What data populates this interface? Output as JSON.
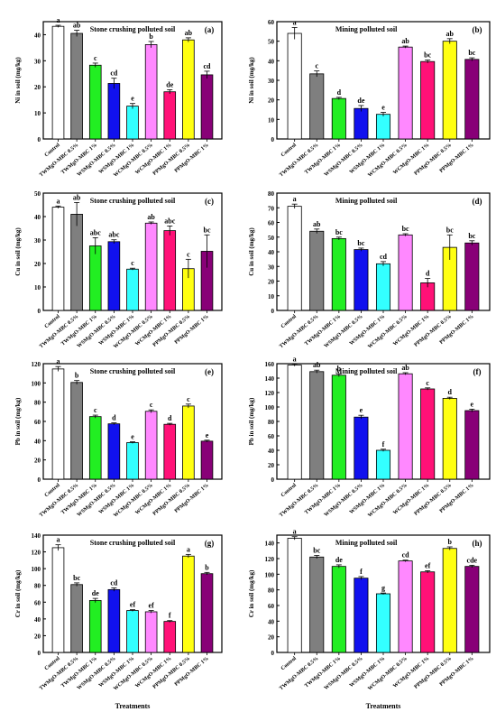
{
  "colors": [
    "#ffffff",
    "#7f7f7f",
    "#22ee22",
    "#1111ee",
    "#33ffff",
    "#ff88ff",
    "#ff1177",
    "#ffff11",
    "#880077"
  ],
  "chart_data": [
    {
      "id": "a",
      "type": "bar",
      "title": "Stone crushing polluted soil",
      "panel_label": "(a)",
      "ylabel": "Ni in soil (mg/kg)",
      "xlabel": "",
      "ylim": [
        0,
        45
      ],
      "yticks": [
        0,
        10,
        20,
        30,
        40
      ],
      "categories": [
        "Control",
        "TWMgO-MBC 0.5%",
        "TWMgO-MBC 1%",
        "WSMgO-MBC 0.5%",
        "WSMgO-MBC 1%",
        "WCMgO-MBC 0.5%",
        "WCMgO-MBC 1%",
        "PPMgO-MBC 0.5%",
        "PPMgO-MBC 1%"
      ],
      "values": [
        43.2,
        40.5,
        28.3,
        21.3,
        12.6,
        36.2,
        18.1,
        38.0,
        24.6
      ],
      "errors": [
        0.4,
        1.2,
        0.8,
        2.0,
        1.0,
        1.2,
        0.8,
        0.8,
        1.4
      ],
      "letters": [
        "a",
        "ab",
        "c",
        "cd",
        "e",
        "b",
        "de",
        "ab",
        "cd"
      ]
    },
    {
      "id": "b",
      "type": "bar",
      "title": "Mining polluted soil",
      "panel_label": "(b)",
      "ylabel": "Ni in soil (mg/kg)",
      "xlabel": "",
      "ylim": [
        0,
        60
      ],
      "yticks": [
        0,
        10,
        20,
        30,
        40,
        50,
        60
      ],
      "categories": [
        "Control",
        "TWMgO-MBC 0.5%",
        "TWMgO-MBC 1%",
        "WSMgO-MBC 0.5%",
        "WSMgO-MBC 1%",
        "WCMgO-MBC 0.5%",
        "WCMgO-MBC 1%",
        "PPMgO-MBC 0.5%",
        "PPMgO-MBC 1%"
      ],
      "values": [
        54.0,
        33.3,
        20.7,
        15.6,
        12.6,
        47.0,
        39.6,
        50.0,
        40.7
      ],
      "errors": [
        3.0,
        1.5,
        0.6,
        1.5,
        1.0,
        0.5,
        0.8,
        1.3,
        0.8
      ],
      "letters": [
        "a",
        "c",
        "d",
        "de",
        "e",
        "ab",
        "bc",
        "ab",
        "bc"
      ]
    },
    {
      "id": "c",
      "type": "bar",
      "title": "Stone crushing polluted soil",
      "panel_label": "(c)",
      "ylabel": "Cu in soil (mg/kg)",
      "xlabel": "",
      "ylim": [
        0,
        50
      ],
      "yticks": [
        0,
        10,
        20,
        30,
        40,
        50
      ],
      "categories": [
        "Control",
        "TWMgO-MBC 0.5%",
        "TWMgO-MBC 1%",
        "WSMgO-MBC 0.5%",
        "WSMgO-MBC 1%",
        "WCMgO-MBC 0.5%",
        "WCMgO-MBC 1%",
        "PPMgO-MBC 0.5%",
        "PPMgO-MBC 1%"
      ],
      "values": [
        44.0,
        41.0,
        27.5,
        29.3,
        17.6,
        37.2,
        34.0,
        17.8,
        25.2
      ],
      "errors": [
        0.5,
        5.0,
        3.5,
        0.8,
        0.4,
        0.5,
        2.0,
        4.0,
        7.0
      ],
      "letters": [
        "a",
        "ab",
        "abc",
        "abc",
        "c",
        "ab",
        "abc",
        "c",
        "bc"
      ]
    },
    {
      "id": "d",
      "type": "bar",
      "title": "Mining polluted soil",
      "panel_label": "(d)",
      "ylabel": "Cu in soil (mg/kg)",
      "xlabel": "",
      "ylim": [
        0,
        80
      ],
      "yticks": [
        0,
        10,
        20,
        30,
        40,
        50,
        60,
        70,
        80
      ],
      "categories": [
        "Control",
        "TWMgO-MBC 0.5%",
        "TWMgO-MBC 1%",
        "WSMgO-MBC 0.5%",
        "WSMgO-MBC 1%",
        "WCMgO-MBC 0.5%",
        "WCMgO-MBC 1%",
        "PPMgO-MBC 0.5%",
        "PPMgO-MBC 1%"
      ],
      "values": [
        71.0,
        54.0,
        49.0,
        41.5,
        31.8,
        51.5,
        18.8,
        43.0,
        46.0
      ],
      "errors": [
        1.5,
        1.5,
        1.0,
        1.0,
        1.5,
        0.8,
        3.0,
        8.5,
        1.5
      ],
      "letters": [
        "a",
        "ab",
        "bc",
        "bc",
        "cd",
        "bc",
        "d",
        "bc",
        "bc"
      ]
    },
    {
      "id": "e",
      "type": "bar",
      "title": "Stone crushing polluted soil",
      "panel_label": "(e)",
      "ylabel": "Pb in soil (mg/kg)",
      "xlabel": "",
      "ylim": [
        0,
        120
      ],
      "yticks": [
        0,
        20,
        40,
        60,
        80,
        100,
        120
      ],
      "categories": [
        "Control",
        "TWMgO-MBC 0.5%",
        "TWMgO-MBC 1%",
        "WSMgO-MBC 0.5%",
        "WSMgO-MBC 1%",
        "WCMgO-MBC 0.5%",
        "WCMgO-MBC 1%",
        "PPMgO-MBC 0.5%",
        "PPMgO-MBC 1%"
      ],
      "values": [
        114.5,
        100.5,
        65.0,
        57.5,
        38.0,
        70.5,
        57.0,
        76.0,
        39.5
      ],
      "errors": [
        2.5,
        2.0,
        1.5,
        1.0,
        0.8,
        1.5,
        1.0,
        2.0,
        1.0
      ],
      "letters": [
        "a",
        "b",
        "c",
        "d",
        "e",
        "c",
        "d",
        "c",
        "e"
      ]
    },
    {
      "id": "f",
      "type": "bar",
      "title": "Mining polluted soil",
      "panel_label": "(f)",
      "ylabel": "Pb in soil (mg/kg)",
      "xlabel": "",
      "ylim": [
        0,
        160
      ],
      "yticks": [
        0,
        20,
        40,
        60,
        80,
        100,
        120,
        140,
        160
      ],
      "categories": [
        "Control",
        "TWMgO-MBC 0.5%",
        "TWMgO-MBC 1%",
        "WSMgO-MBC 0.5%",
        "WSMgO-MBC 1%",
        "WCMgO-MBC 0.5%",
        "WCMgO-MBC 1%",
        "PPMgO-MBC 0.5%",
        "PPMgO-MBC 1%"
      ],
      "values": [
        158.0,
        149.0,
        144.0,
        86.0,
        40.0,
        146.0,
        125.0,
        112.0,
        95.0
      ],
      "errors": [
        1.5,
        2.0,
        2.0,
        2.5,
        1.5,
        1.5,
        1.5,
        1.5,
        2.0
      ],
      "letters": [
        "a",
        "ab",
        "b",
        "e",
        "f",
        "ab",
        "c",
        "d",
        "e"
      ]
    },
    {
      "id": "g",
      "type": "bar",
      "title": "Stone crushing polluted soil",
      "panel_label": "(g)",
      "ylabel": "Cr in soil (mg/kg)",
      "xlabel": "Treatments",
      "ylim": [
        0,
        140
      ],
      "yticks": [
        0,
        20,
        40,
        60,
        80,
        100,
        120,
        140
      ],
      "categories": [
        "Control",
        "TWMgO-MBC 0.5%",
        "TWMgO-MBC 1%",
        "WSMgO-MBC 0.5%",
        "WSMgO-MBC 1%",
        "WCMgO-MBC 0.5%",
        "WCMgO-MBC 1%",
        "PPMgO-MBC 0.5%",
        "PPMgO-MBC 1%"
      ],
      "values": [
        125.0,
        81.0,
        62.0,
        75.0,
        50.0,
        48.5,
        37.0,
        115.0,
        94.0
      ],
      "errors": [
        3.5,
        2.0,
        2.5,
        2.0,
        1.0,
        1.5,
        1.0,
        2.0,
        1.5
      ],
      "letters": [
        "a",
        "bc",
        "de",
        "cd",
        "ef",
        "ef",
        "f",
        "a",
        "b"
      ]
    },
    {
      "id": "h",
      "type": "bar",
      "title": "Mining polluted soil",
      "panel_label": "(h)",
      "ylabel": "Cr in soil (mg/kg)",
      "xlabel": "Treatments",
      "ylim": [
        0,
        150
      ],
      "yticks": [
        0,
        20,
        40,
        60,
        80,
        100,
        120,
        140
      ],
      "categories": [
        "Control",
        "TWMgO-MBC 0.5%",
        "TWMgO-MBC 1%",
        "WSMgO-MBC 0.5%",
        "WSMgO-MBC 1%",
        "WCMgO-MBC 0.5%",
        "WCMgO-MBC 1%",
        "PPMgO-MBC 0.5%",
        "PPMgO-MBC 1%"
      ],
      "values": [
        146.0,
        122.0,
        110.0,
        95.0,
        75.0,
        117.0,
        103.0,
        133.0,
        110.0
      ],
      "errors": [
        2.0,
        2.0,
        2.0,
        2.0,
        1.0,
        1.0,
        1.5,
        2.0,
        1.5
      ],
      "letters": [
        "a",
        "bc",
        "de",
        "f",
        "g",
        "cd",
        "ef",
        "b",
        "cde"
      ]
    }
  ]
}
